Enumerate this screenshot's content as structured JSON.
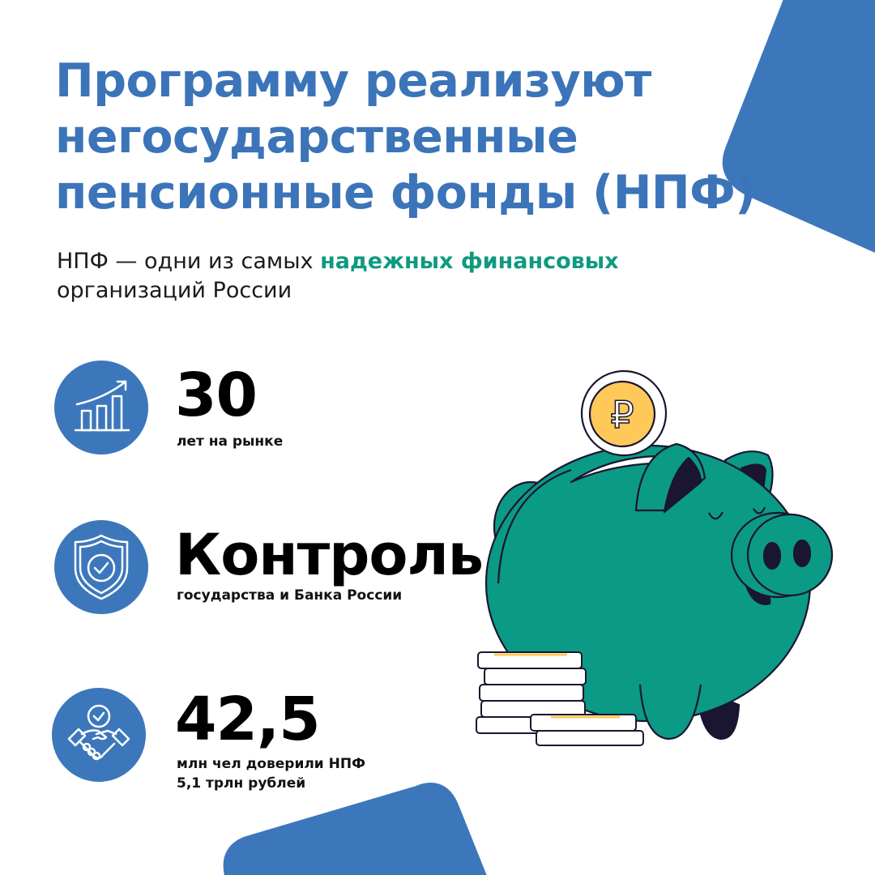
{
  "title": {
    "lines": [
      "Программу реализуют",
      "негосударственные",
      "пенсионные фонды (НПФ)"
    ]
  },
  "subtitle": {
    "prefix": "НПФ — одни из самых ",
    "highlight": "надежных финансовых",
    "suffix": "организаций России"
  },
  "stats": [
    {
      "value": "30",
      "caption": "лет на рынке",
      "icon": "growth-chart-icon"
    },
    {
      "value": "Контроль",
      "caption": "государства и Банка России",
      "icon": "shield-check-icon"
    },
    {
      "value": "42,5",
      "caption": "млн чел доверили НПФ",
      "caption2": "5,1 трлн рублей",
      "icon": "handshake-icon"
    }
  ],
  "colors": {
    "brand_blue": "#3d77bb",
    "accent_green": "#0f9a80",
    "piggy_green": "#0b9a85",
    "coin_gold": "#ffc95a",
    "outline_dark": "#1a1530"
  },
  "illustration": {
    "coin_symbol": "₽"
  }
}
